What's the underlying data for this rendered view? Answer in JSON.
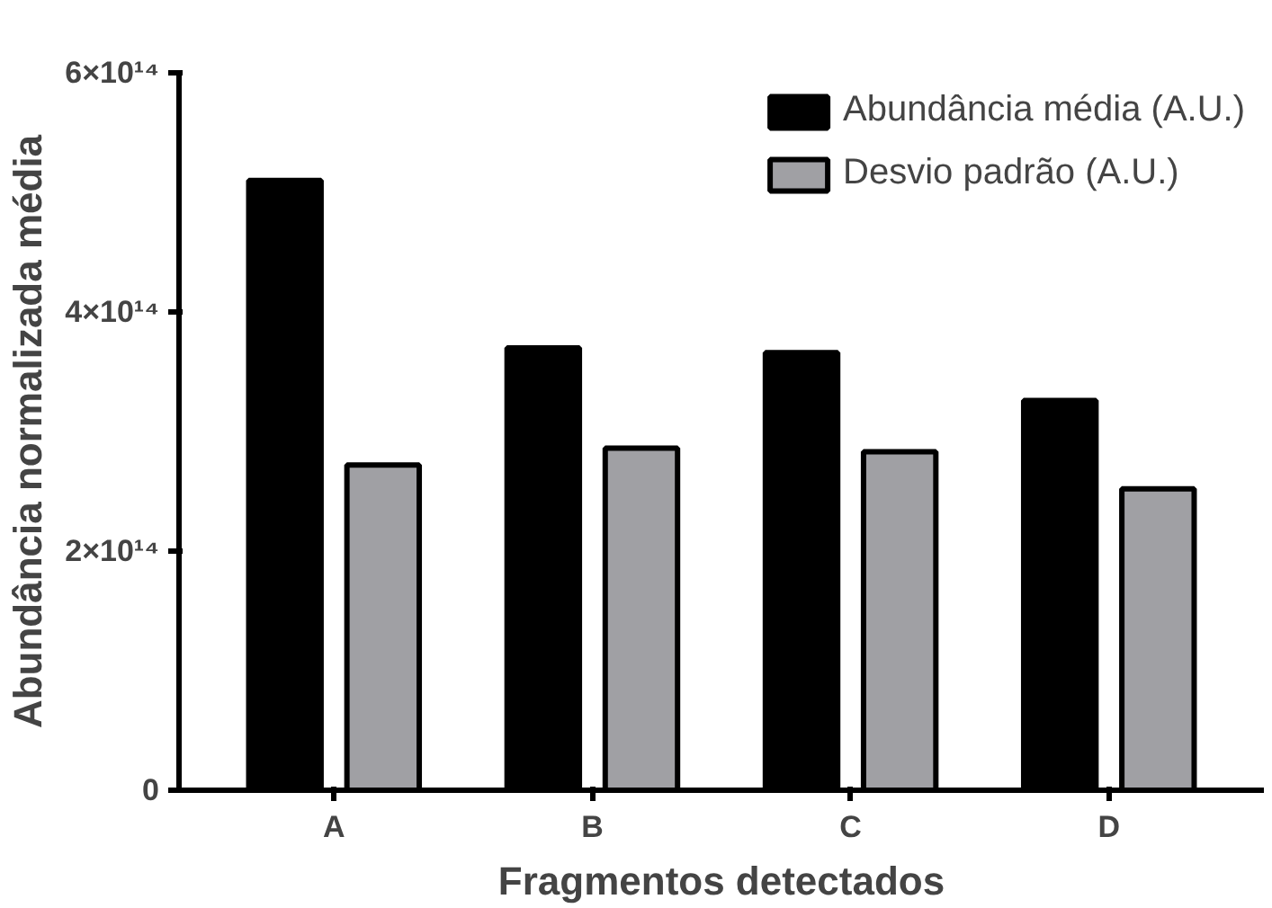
{
  "chart_data": {
    "type": "bar",
    "xlabel": "Fragmentos detectados",
    "ylabel": "Abundância normalizada média",
    "categories": [
      "A",
      "B",
      "C",
      "D"
    ],
    "series": [
      {
        "name": "Abundância média (A.U.)",
        "color": "#000000",
        "values": [
          510000000000000.0,
          370000000000000.0,
          366000000000000.0,
          326000000000000.0
        ]
      },
      {
        "name": "Desvio padrão (A.U.)",
        "color": "#a0a0a4",
        "values": [
          272000000000000.0,
          286000000000000.0,
          283000000000000.0,
          252000000000000.0
        ]
      }
    ],
    "ylim": [
      0,
      600000000000000.0
    ],
    "yticks": [
      0,
      {
        "value": 200000000000000.0,
        "label": "2×10¹⁴"
      },
      {
        "value": 400000000000000.0,
        "label": "4×10¹⁴"
      },
      {
        "value": 600000000000000.0,
        "label": "6×10¹⁴"
      }
    ],
    "grid": false,
    "legend": "top right"
  }
}
